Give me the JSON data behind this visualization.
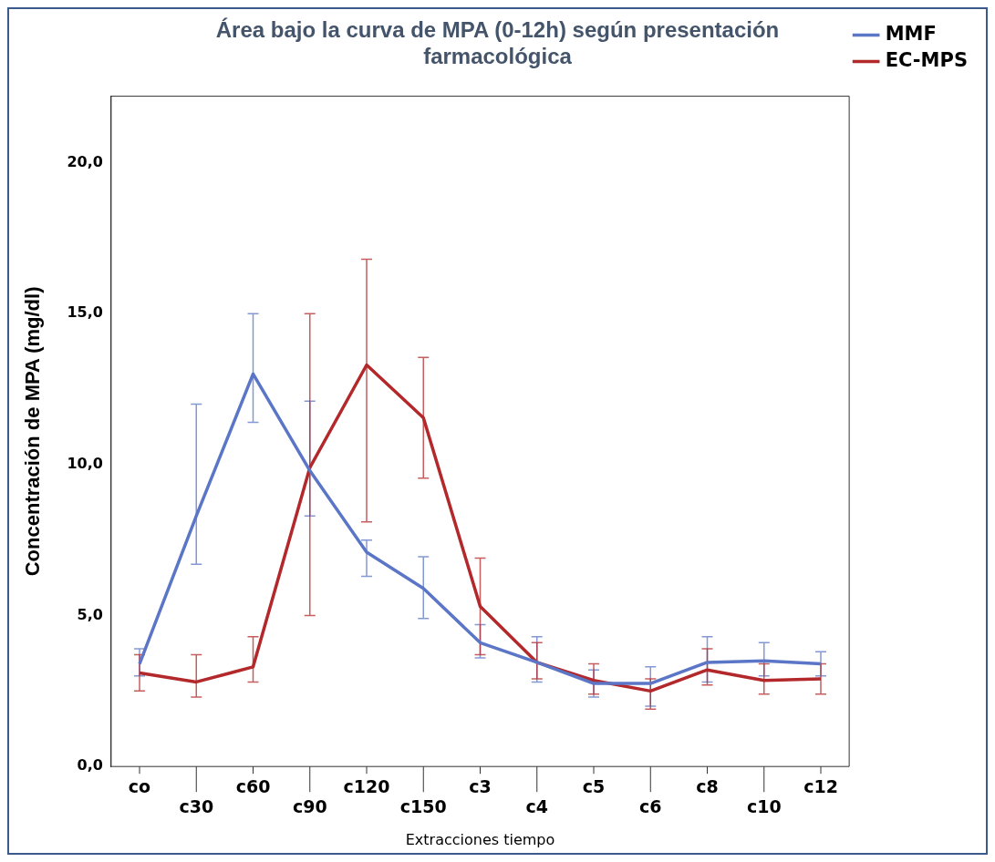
{
  "chart_data": {
    "type": "line",
    "title": "Área bajo la curva de MPA (0-12h) según presentación farmacológica",
    "xlabel": "Extracciones tiempo",
    "ylabel": "Concentración de MPA (mg/dl)",
    "categories": [
      "co",
      "c30",
      "c60",
      "c90",
      "c120",
      "c150",
      "c3",
      "c4",
      "c5",
      "c6",
      "c8",
      "c10",
      "c12"
    ],
    "series": [
      {
        "name": "MMF",
        "color": "#5b76c6",
        "values": [
          3.4,
          8.3,
          13.0,
          9.8,
          7.1,
          5.9,
          4.1,
          3.45,
          2.75,
          2.75,
          3.45,
          3.5,
          3.4
        ],
        "errors": [
          [
            3.0,
            3.9
          ],
          [
            6.7,
            12.0
          ],
          [
            11.4,
            15.0
          ],
          [
            8.3,
            12.1
          ],
          [
            6.3,
            7.5
          ],
          [
            4.9,
            6.95
          ],
          [
            3.6,
            4.7
          ],
          [
            2.8,
            4.3
          ],
          [
            2.3,
            3.2
          ],
          [
            2.0,
            3.3
          ],
          [
            2.8,
            4.3
          ],
          [
            3.0,
            4.1
          ],
          [
            3.0,
            3.8
          ]
        ]
      },
      {
        "name": "EC-MPS",
        "color": "#b3282a",
        "values": [
          3.1,
          2.8,
          3.3,
          9.9,
          13.3,
          11.55,
          5.3,
          3.45,
          2.85,
          2.5,
          3.2,
          2.85,
          2.9
        ],
        "errors": [
          [
            2.5,
            3.7
          ],
          [
            2.3,
            3.7
          ],
          [
            2.8,
            4.3
          ],
          [
            5.0,
            15.0
          ],
          [
            8.1,
            16.8
          ],
          [
            9.55,
            13.55
          ],
          [
            3.7,
            6.9
          ],
          [
            2.9,
            4.1
          ],
          [
            2.4,
            3.4
          ],
          [
            1.9,
            2.9
          ],
          [
            2.7,
            3.9
          ],
          [
            2.4,
            3.4
          ],
          [
            2.4,
            3.4
          ]
        ]
      }
    ],
    "ylim": [
      0,
      22.2
    ],
    "yticks": [
      {
        "value": 0,
        "label": "0,0"
      },
      {
        "value": 5,
        "label": "5,0"
      },
      {
        "value": 10,
        "label": "10,0"
      },
      {
        "value": 15,
        "label": "15,0"
      },
      {
        "value": 20,
        "label": "20,0"
      }
    ],
    "grid": false,
    "legend": "top right",
    "marker": "none",
    "line_style": "solid"
  }
}
